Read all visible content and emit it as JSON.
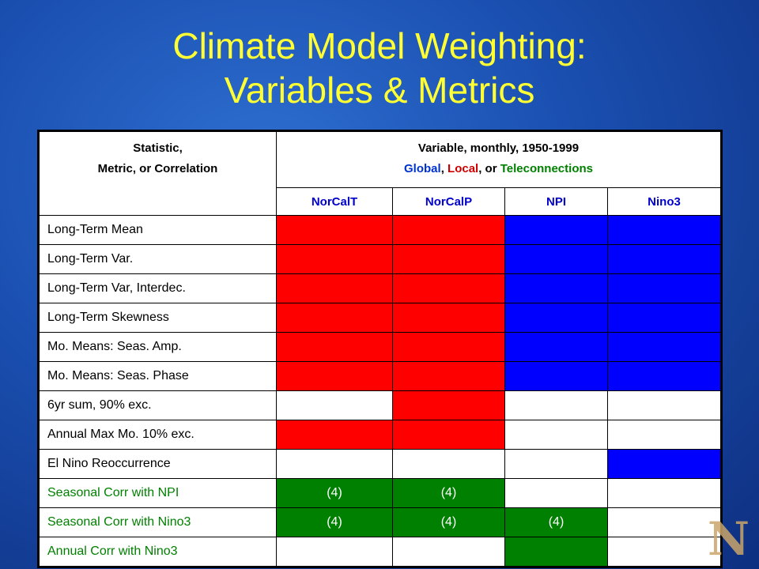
{
  "slide": {
    "title_line1": "Climate Model Weighting:",
    "title_line2": "Variables & Metrics",
    "logo_letter": "N"
  },
  "table": {
    "header_left_line1": "Statistic,",
    "header_left_line2": "Metric, or Correlation",
    "header_right_line1": "Variable, monthly, 1950-1999",
    "header_right_global": "Global",
    "header_right_sep1": ", ",
    "header_right_local": "Local",
    "header_right_sep2": ", or ",
    "header_right_tele": "Teleconnections",
    "columns": [
      "NorCalT",
      "NorCalP",
      "NPI",
      "Nino3"
    ],
    "colors": {
      "red": "#ff0000",
      "blue": "#0000ff",
      "green": "#008000",
      "white": "#ffffff"
    },
    "rows": [
      {
        "label": "Long-Term Mean",
        "label_color": "black",
        "cells": [
          {
            "fill": "red",
            "text": ""
          },
          {
            "fill": "red",
            "text": ""
          },
          {
            "fill": "blue",
            "text": ""
          },
          {
            "fill": "blue",
            "text": ""
          }
        ]
      },
      {
        "label": "Long-Term Var.",
        "label_color": "black",
        "cells": [
          {
            "fill": "red",
            "text": ""
          },
          {
            "fill": "red",
            "text": ""
          },
          {
            "fill": "blue",
            "text": ""
          },
          {
            "fill": "blue",
            "text": ""
          }
        ]
      },
      {
        "label": "Long-Term Var, Interdec.",
        "label_color": "black",
        "cells": [
          {
            "fill": "red",
            "text": ""
          },
          {
            "fill": "red",
            "text": ""
          },
          {
            "fill": "blue",
            "text": ""
          },
          {
            "fill": "blue",
            "text": ""
          }
        ]
      },
      {
        "label": "Long-Term Skewness",
        "label_color": "black",
        "cells": [
          {
            "fill": "red",
            "text": ""
          },
          {
            "fill": "red",
            "text": ""
          },
          {
            "fill": "blue",
            "text": ""
          },
          {
            "fill": "blue",
            "text": ""
          }
        ]
      },
      {
        "label": "Mo. Means:  Seas. Amp.",
        "label_color": "black",
        "cells": [
          {
            "fill": "red",
            "text": ""
          },
          {
            "fill": "red",
            "text": ""
          },
          {
            "fill": "blue",
            "text": ""
          },
          {
            "fill": "blue",
            "text": ""
          }
        ]
      },
      {
        "label": "Mo. Means:  Seas. Phase",
        "label_color": "black",
        "cells": [
          {
            "fill": "red",
            "text": ""
          },
          {
            "fill": "red",
            "text": ""
          },
          {
            "fill": "blue",
            "text": ""
          },
          {
            "fill": "blue",
            "text": ""
          }
        ]
      },
      {
        "label": "6yr sum, 90% exc.",
        "label_color": "black",
        "cells": [
          {
            "fill": "white",
            "text": ""
          },
          {
            "fill": "red",
            "text": ""
          },
          {
            "fill": "white",
            "text": ""
          },
          {
            "fill": "white",
            "text": ""
          }
        ]
      },
      {
        "label": "Annual Max Mo. 10% exc.",
        "label_color": "black",
        "cells": [
          {
            "fill": "red",
            "text": ""
          },
          {
            "fill": "red",
            "text": ""
          },
          {
            "fill": "white",
            "text": ""
          },
          {
            "fill": "white",
            "text": ""
          }
        ]
      },
      {
        "label": "El Nino Reoccurrence",
        "label_color": "black",
        "cells": [
          {
            "fill": "white",
            "text": ""
          },
          {
            "fill": "white",
            "text": ""
          },
          {
            "fill": "white",
            "text": ""
          },
          {
            "fill": "blue",
            "text": ""
          }
        ]
      },
      {
        "label": "Seasonal Corr with NPI",
        "label_color": "green",
        "cells": [
          {
            "fill": "green",
            "text": "(4)"
          },
          {
            "fill": "green",
            "text": "(4)"
          },
          {
            "fill": "white",
            "text": ""
          },
          {
            "fill": "white",
            "text": ""
          }
        ]
      },
      {
        "label": "Seasonal Corr with Nino3",
        "label_color": "green",
        "cells": [
          {
            "fill": "green",
            "text": "(4)"
          },
          {
            "fill": "green",
            "text": "(4)"
          },
          {
            "fill": "green",
            "text": "(4)"
          },
          {
            "fill": "white",
            "text": ""
          }
        ]
      },
      {
        "label": "Annual Corr with Nino3",
        "label_color": "green",
        "cells": [
          {
            "fill": "white",
            "text": ""
          },
          {
            "fill": "white",
            "text": ""
          },
          {
            "fill": "green",
            "text": ""
          },
          {
            "fill": "white",
            "text": ""
          }
        ]
      }
    ]
  }
}
